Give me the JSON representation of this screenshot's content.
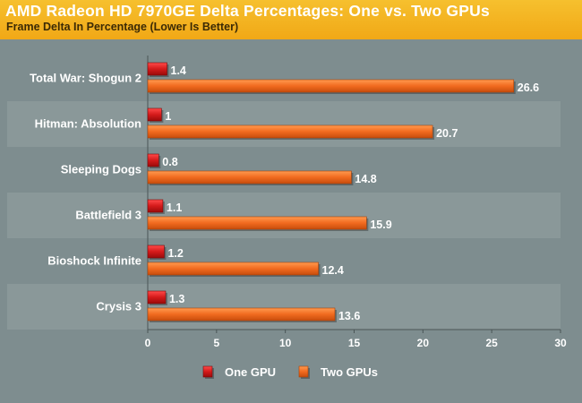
{
  "title": "AMD Radeon HD 7970GE Delta Percentages: One vs. Two GPUs",
  "subtitle": "Frame Delta In Percentage (Lower Is Better)",
  "colors": {
    "header": "#f2ae1c",
    "background": "#7e8d8f",
    "band": "#8a9899",
    "one_gpu": "#d41a1a",
    "two_gpus": "#f16a1f"
  },
  "chart_data": {
    "type": "bar",
    "orientation": "horizontal",
    "title": "AMD Radeon HD 7970GE Delta Percentages: One vs. Two GPUs",
    "subtitle": "Frame Delta In Percentage (Lower Is Better)",
    "categories": [
      "Total War: Shogun 2",
      "Hitman: Absolution",
      "Sleeping Dogs",
      "Battlefield 3",
      "Bioshock Infinite",
      "Crysis 3"
    ],
    "series": [
      {
        "name": "One GPU",
        "values": [
          1.4,
          1,
          0.8,
          1.1,
          1.2,
          1.3
        ]
      },
      {
        "name": "Two GPUs",
        "values": [
          26.6,
          20.7,
          14.8,
          15.9,
          12.4,
          13.6
        ]
      }
    ],
    "value_labels": [
      [
        "1.4",
        "1",
        "0.8",
        "1.1",
        "1.2",
        "1.3"
      ],
      [
        "26.6",
        "20.7",
        "14.8",
        "15.9",
        "12.4",
        "13.6"
      ]
    ],
    "xlim": [
      0,
      30
    ],
    "xticks": [
      0,
      5,
      10,
      15,
      20,
      25,
      30
    ],
    "grid": false,
    "legend": "bottom-center"
  }
}
